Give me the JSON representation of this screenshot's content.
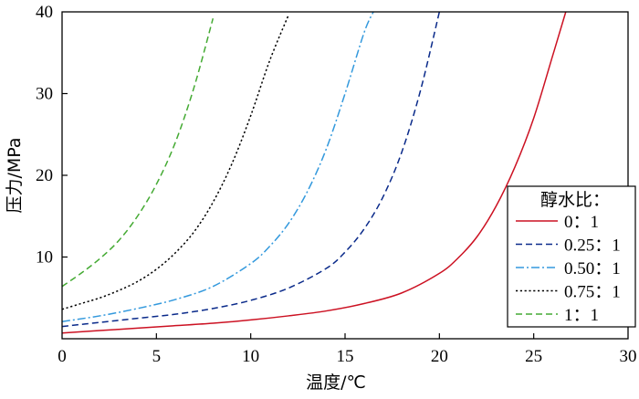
{
  "chart_data": {
    "type": "line",
    "xlabel": "温度/℃",
    "ylabel": "压力/MPa",
    "xlim": [
      0,
      30
    ],
    "ylim": [
      0,
      40
    ],
    "xticks": [
      0,
      5,
      10,
      15,
      20,
      25,
      30
    ],
    "yticks": [
      10,
      20,
      30,
      40
    ],
    "grid": false,
    "legend": {
      "title": "醇水比：",
      "position": "bottom-right"
    },
    "series": [
      {
        "name": "0：1",
        "color": "#cc1122",
        "dash": "solid",
        "x": [
          0,
          2,
          4,
          6,
          8,
          10,
          12,
          14,
          16,
          18,
          20,
          21,
          22,
          23,
          24,
          25,
          26,
          26.7
        ],
        "y": [
          0.7,
          1.0,
          1.3,
          1.6,
          1.9,
          2.3,
          2.8,
          3.4,
          4.3,
          5.6,
          8.0,
          9.9,
          12.5,
          16.2,
          21.0,
          27.0,
          34.6,
          40.0
        ]
      },
      {
        "name": "0.25：1",
        "color": "#0a2a8a",
        "dash": "dashed",
        "x": [
          0,
          2,
          4,
          6,
          8,
          10,
          12,
          14,
          15,
          16,
          17,
          18,
          19,
          20
        ],
        "y": [
          1.5,
          2.0,
          2.5,
          3.0,
          3.7,
          4.7,
          6.2,
          8.6,
          10.6,
          13.4,
          17.3,
          22.8,
          30.4,
          40.0
        ]
      },
      {
        "name": "0.50：1",
        "color": "#3399dd",
        "dash": "dashdot",
        "x": [
          0,
          2,
          4,
          6,
          8,
          10,
          11,
          12,
          13,
          14,
          15,
          16,
          16.5
        ],
        "y": [
          2.1,
          2.8,
          3.7,
          4.8,
          6.4,
          9.2,
          11.3,
          14.1,
          18.0,
          23.2,
          30.0,
          37.4,
          40.0
        ]
      },
      {
        "name": "0.75：1",
        "color": "#000000",
        "dash": "dotted",
        "x": [
          0,
          1,
          2,
          3,
          4,
          5,
          6,
          7,
          8,
          9,
          10,
          11,
          12
        ],
        "y": [
          3.6,
          4.3,
          5.0,
          5.9,
          7.0,
          8.5,
          10.5,
          13.1,
          16.7,
          21.4,
          27.3,
          34.0,
          39.6
        ]
      },
      {
        "name": "1：1",
        "color": "#44aa33",
        "dash": "dashed",
        "x": [
          0,
          1,
          2,
          3,
          4,
          5,
          6,
          7,
          8
        ],
        "y": [
          6.4,
          8.0,
          9.8,
          12.0,
          15.0,
          18.9,
          24.0,
          30.8,
          39.2
        ]
      }
    ]
  }
}
